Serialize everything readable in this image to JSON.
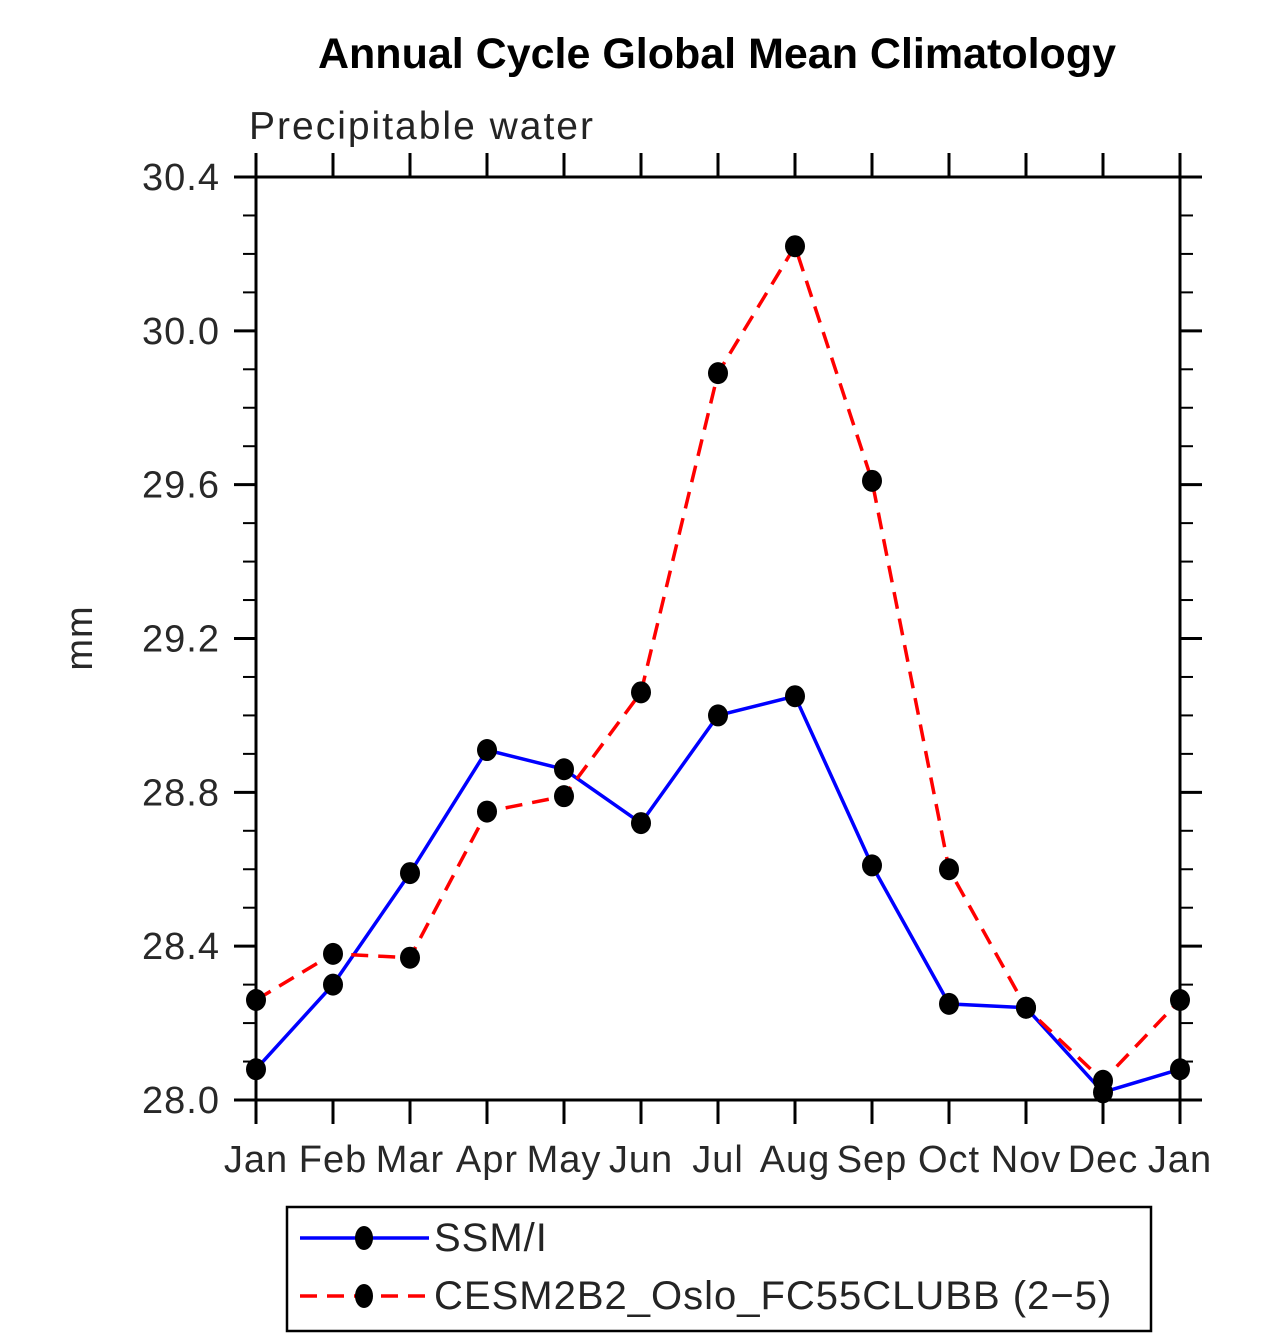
{
  "chart_data": {
    "type": "line",
    "title": "Annual Cycle Global Mean Climatology",
    "subtitle": "Precipitable water",
    "ylabel": "mm",
    "x_categories": [
      "Jan",
      "Feb",
      "Mar",
      "Apr",
      "May",
      "Jun",
      "Jul",
      "Aug",
      "Sep",
      "Oct",
      "Nov",
      "Dec",
      "Jan"
    ],
    "ylim": [
      28.0,
      30.4
    ],
    "ytick_major_step": 0.4,
    "ytick_minor_step": 0.1,
    "y_tick_labels": [
      "28.0",
      "28.4",
      "28.8",
      "29.2",
      "29.6",
      "30.0",
      "30.4"
    ],
    "grid": false,
    "legend_position": "bottom",
    "axis_color": "#000000",
    "marker_color": "#000000",
    "series": [
      {
        "name": "SSM/I",
        "color": "#0000ff",
        "line_style": "solid",
        "marker": "filled-circle",
        "values": [
          28.08,
          28.3,
          28.59,
          28.91,
          28.86,
          28.72,
          29.0,
          29.05,
          28.61,
          28.25,
          28.24,
          28.02,
          28.08
        ]
      },
      {
        "name": "CESM2B2_Oslo_FC55CLUBB (2−5)",
        "color": "#ff0000",
        "line_style": "dashed",
        "marker": "filled-circle",
        "values": [
          28.26,
          28.38,
          28.37,
          28.75,
          28.79,
          29.06,
          29.89,
          30.22,
          29.61,
          28.6,
          28.24,
          28.05,
          28.26
        ]
      }
    ]
  }
}
